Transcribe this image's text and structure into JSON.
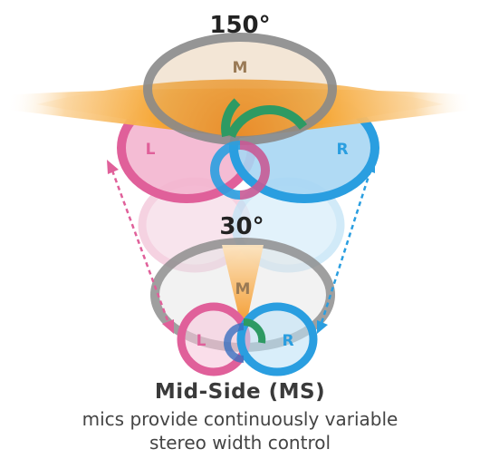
{
  "top_pattern": {
    "angle_label": "150°",
    "mid_label": "M",
    "left_label": "L",
    "right_label": "R"
  },
  "bottom_pattern": {
    "angle_label": "30°",
    "mid_label": "M",
    "left_label": "L",
    "right_label": "R"
  },
  "caption": {
    "title": "Mid-Side (MS)",
    "line1": "mics provide continuously variable",
    "line2": "stereo width control"
  },
  "colors": {
    "mid": "#8a8a8a",
    "left": "#e0609a",
    "right": "#2a9ee0",
    "cone": "#f5a020",
    "overlap": "#2e9a63"
  }
}
